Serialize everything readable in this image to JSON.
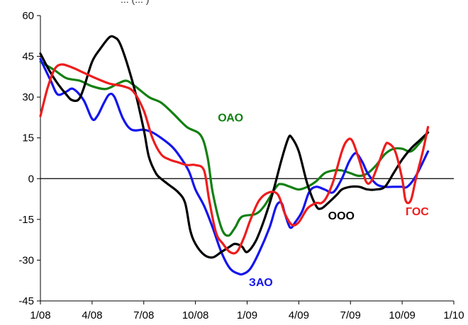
{
  "header_fragment": "...                                  (...                       )",
  "chart_data": {
    "type": "line",
    "title": "",
    "xlabel": "",
    "ylabel": "",
    "ylim": [
      -45,
      60
    ],
    "y_ticks": [
      -45,
      -30,
      -15,
      0,
      15,
      30,
      45,
      60
    ],
    "x_ticks": [
      "1/08",
      "4/08",
      "7/08",
      "10/08",
      "1/09",
      "4/09",
      "7/09",
      "10/09",
      "1/10"
    ],
    "x_range_months": [
      0,
      24
    ],
    "grid": false,
    "legend": "labels placed on lines",
    "series": [
      {
        "name": "ОАО",
        "color": "#128012",
        "label_pos": [
          10.3,
          21
        ],
        "data": [
          [
            0,
            43
          ],
          [
            0.8,
            40
          ],
          [
            1.5,
            37
          ],
          [
            2.3,
            36
          ],
          [
            3,
            34
          ],
          [
            3.8,
            33
          ],
          [
            4.5,
            35
          ],
          [
            5,
            36
          ],
          [
            5.5,
            34
          ],
          [
            6.3,
            30
          ],
          [
            7,
            28
          ],
          [
            7.7,
            24
          ],
          [
            8.5,
            19
          ],
          [
            9.3,
            16
          ],
          [
            9.7,
            8
          ],
          [
            10,
            -5
          ],
          [
            10.5,
            -18
          ],
          [
            10.9,
            -21
          ],
          [
            11.3,
            -18
          ],
          [
            11.7,
            -14
          ],
          [
            12.5,
            -13
          ],
          [
            13,
            -10
          ],
          [
            13.7,
            -3
          ],
          [
            14,
            -2
          ],
          [
            14.5,
            -3
          ],
          [
            15,
            -4
          ],
          [
            15.5,
            -3
          ],
          [
            16,
            -1
          ],
          [
            16.5,
            2
          ],
          [
            17,
            3
          ],
          [
            17.5,
            3
          ],
          [
            18,
            2
          ],
          [
            18.5,
            1
          ],
          [
            19,
            2
          ],
          [
            19.5,
            5
          ],
          [
            20,
            9
          ],
          [
            20.5,
            11
          ],
          [
            21,
            11
          ],
          [
            21.5,
            10
          ],
          [
            22,
            13
          ],
          [
            22.5,
            17
          ]
        ]
      },
      {
        "name": "ЗАО",
        "color": "#1414ee",
        "label_pos": [
          12.1,
          -39.5
        ],
        "data": [
          [
            0,
            44
          ],
          [
            0.6,
            36
          ],
          [
            1,
            31
          ],
          [
            1.5,
            32
          ],
          [
            1.9,
            33
          ],
          [
            2.5,
            29
          ],
          [
            3,
            22
          ],
          [
            3.3,
            23
          ],
          [
            3.7,
            28
          ],
          [
            4,
            31
          ],
          [
            4.3,
            30
          ],
          [
            4.8,
            22
          ],
          [
            5.3,
            18
          ],
          [
            6,
            18
          ],
          [
            6.5,
            17
          ],
          [
            7,
            15
          ],
          [
            7.6,
            12
          ],
          [
            8,
            9
          ],
          [
            8.6,
            3
          ],
          [
            9,
            -4
          ],
          [
            9.5,
            -10
          ],
          [
            10,
            -18
          ],
          [
            10.5,
            -27
          ],
          [
            11,
            -33
          ],
          [
            11.5,
            -35
          ],
          [
            11.8,
            -35
          ],
          [
            12.2,
            -33
          ],
          [
            12.7,
            -27
          ],
          [
            13.3,
            -18
          ],
          [
            13.7,
            -10
          ],
          [
            14,
            -9
          ],
          [
            14.2,
            -13
          ],
          [
            14.5,
            -18
          ],
          [
            14.8,
            -16
          ],
          [
            15.2,
            -12
          ],
          [
            15.6,
            -5
          ],
          [
            16,
            -3
          ],
          [
            16.5,
            -4
          ],
          [
            17,
            -5
          ],
          [
            17.5,
            0
          ],
          [
            17.9,
            6
          ],
          [
            18.2,
            9
          ],
          [
            18.4,
            9
          ],
          [
            18.7,
            6
          ],
          [
            19,
            2
          ],
          [
            19.5,
            -2
          ],
          [
            20,
            -3
          ],
          [
            20.5,
            -3
          ],
          [
            21,
            -3
          ],
          [
            21.3,
            -3
          ],
          [
            21.8,
            1
          ],
          [
            22.5,
            10
          ]
        ]
      },
      {
        "name": "ООО",
        "color": "#000000",
        "label_pos": [
          16.7,
          -15
        ],
        "data": [
          [
            0,
            46
          ],
          [
            0.5,
            40
          ],
          [
            1,
            35
          ],
          [
            1.5,
            31
          ],
          [
            1.8,
            29
          ],
          [
            2.2,
            29
          ],
          [
            2.5,
            33
          ],
          [
            3,
            43
          ],
          [
            3.5,
            48
          ],
          [
            4,
            52
          ],
          [
            4.3,
            52
          ],
          [
            4.6,
            50
          ],
          [
            5,
            43
          ],
          [
            5.5,
            32
          ],
          [
            6,
            18
          ],
          [
            6.3,
            8
          ],
          [
            6.7,
            2
          ],
          [
            7,
            0
          ],
          [
            7.4,
            -2
          ],
          [
            8,
            -5
          ],
          [
            8.4,
            -9
          ],
          [
            8.7,
            -19
          ],
          [
            9,
            -24
          ],
          [
            9.5,
            -28
          ],
          [
            10,
            -29
          ],
          [
            10.5,
            -27
          ],
          [
            11,
            -25
          ],
          [
            11.3,
            -24
          ],
          [
            11.7,
            -25
          ],
          [
            12,
            -27
          ],
          [
            12.5,
            -23
          ],
          [
            13,
            -15
          ],
          [
            13.5,
            -5
          ],
          [
            14,
            7
          ],
          [
            14.4,
            15
          ],
          [
            14.6,
            15
          ],
          [
            15,
            10
          ],
          [
            15.5,
            -2
          ],
          [
            16,
            -10
          ],
          [
            16.3,
            -11
          ],
          [
            16.7,
            -9
          ],
          [
            17.2,
            -6
          ],
          [
            17.5,
            -4
          ],
          [
            18,
            -3
          ],
          [
            18.5,
            -3
          ],
          [
            19,
            -4
          ],
          [
            19.5,
            -4
          ],
          [
            20,
            -3
          ],
          [
            20.5,
            2
          ],
          [
            21,
            7
          ],
          [
            21.5,
            11
          ],
          [
            22,
            14
          ],
          [
            22.5,
            17
          ]
        ]
      },
      {
        "name": "ГОС",
        "color": "#ee1c1c",
        "label_pos": [
          21.2,
          -13.5
        ],
        "data": [
          [
            0,
            23
          ],
          [
            0.4,
            33
          ],
          [
            0.8,
            40
          ],
          [
            1.2,
            42
          ],
          [
            1.8,
            41
          ],
          [
            2.5,
            39
          ],
          [
            3.2,
            37
          ],
          [
            4,
            35
          ],
          [
            4.8,
            34
          ],
          [
            5.4,
            32
          ],
          [
            6,
            25
          ],
          [
            6.5,
            15
          ],
          [
            7,
            9
          ],
          [
            7.5,
            7
          ],
          [
            8,
            6
          ],
          [
            8.5,
            5
          ],
          [
            9,
            5
          ],
          [
            9.5,
            3
          ],
          [
            9.8,
            -8
          ],
          [
            10.2,
            -20
          ],
          [
            10.6,
            -24
          ],
          [
            11,
            -27
          ],
          [
            11.4,
            -27
          ],
          [
            11.8,
            -22
          ],
          [
            12.2,
            -15
          ],
          [
            12.7,
            -8
          ],
          [
            13.3,
            -5
          ],
          [
            13.8,
            -6
          ],
          [
            14.2,
            -13
          ],
          [
            14.6,
            -17
          ],
          [
            15,
            -16
          ],
          [
            15.5,
            -11
          ],
          [
            16,
            -9
          ],
          [
            16.3,
            -9
          ],
          [
            16.6,
            -7
          ],
          [
            17,
            -1
          ],
          [
            17.5,
            10
          ],
          [
            17.8,
            14
          ],
          [
            18.1,
            14
          ],
          [
            18.5,
            7
          ],
          [
            18.9,
            -1
          ],
          [
            19.2,
            -1
          ],
          [
            19.6,
            5
          ],
          [
            20,
            12
          ],
          [
            20.2,
            13
          ],
          [
            20.6,
            10
          ],
          [
            21,
            0
          ],
          [
            21.2,
            -8
          ],
          [
            21.5,
            -8
          ],
          [
            21.8,
            0
          ],
          [
            22.2,
            10
          ],
          [
            22.5,
            19
          ]
        ]
      }
    ]
  }
}
